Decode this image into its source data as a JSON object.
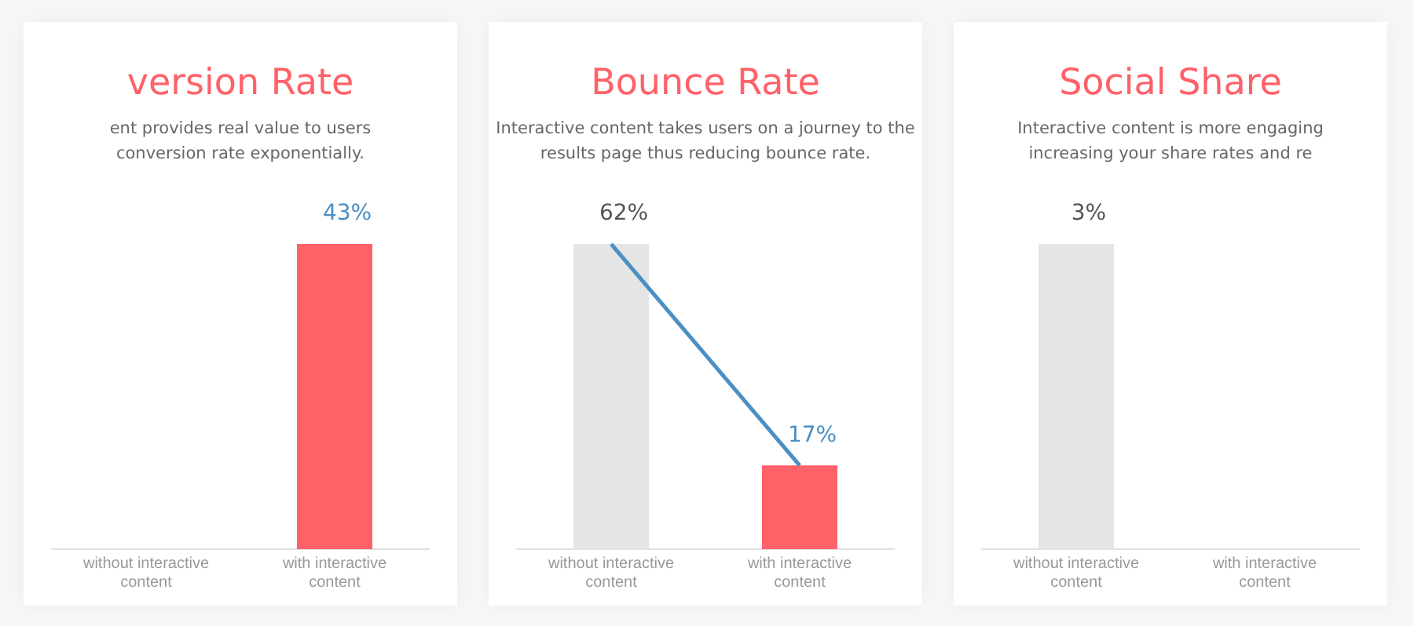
{
  "chart_data": [
    {
      "type": "bar",
      "title": "version Rate",
      "subtitle": "ent provides real value to users\nconversion rate exponentially.",
      "categories": [
        "without interactive content",
        "with interactive content"
      ],
      "series": [
        {
          "colors": [
            "#e5e5e5",
            "#ff6169"
          ],
          "values": [
            null,
            43
          ],
          "value_labels": [
            null,
            "43%"
          ]
        }
      ]
    },
    {
      "type": "bar",
      "title": "Bounce Rate",
      "subtitle": "Interactive content takes users on a journey to the\nresults page thus reducing bounce rate.",
      "categories": [
        "without interactive content",
        "with interactive content"
      ],
      "series": [
        {
          "colors": [
            "#e5e5e5",
            "#ff6169"
          ],
          "values": [
            62,
            17
          ],
          "value_labels": [
            "62%",
            "17%"
          ]
        },
        {
          "type": "line",
          "color": "#4a90c4",
          "values": [
            62,
            17
          ]
        }
      ]
    },
    {
      "type": "bar",
      "title": "Social Share",
      "subtitle": "Interactive content is more engaging\nincreasing your share rates and re",
      "categories": [
        "without interactive content",
        "with interactive content"
      ],
      "series": [
        {
          "colors": [
            "#e5e5e5",
            "#ff6169"
          ],
          "values": [
            3,
            null
          ],
          "value_labels": [
            "3%",
            null
          ]
        }
      ]
    }
  ]
}
